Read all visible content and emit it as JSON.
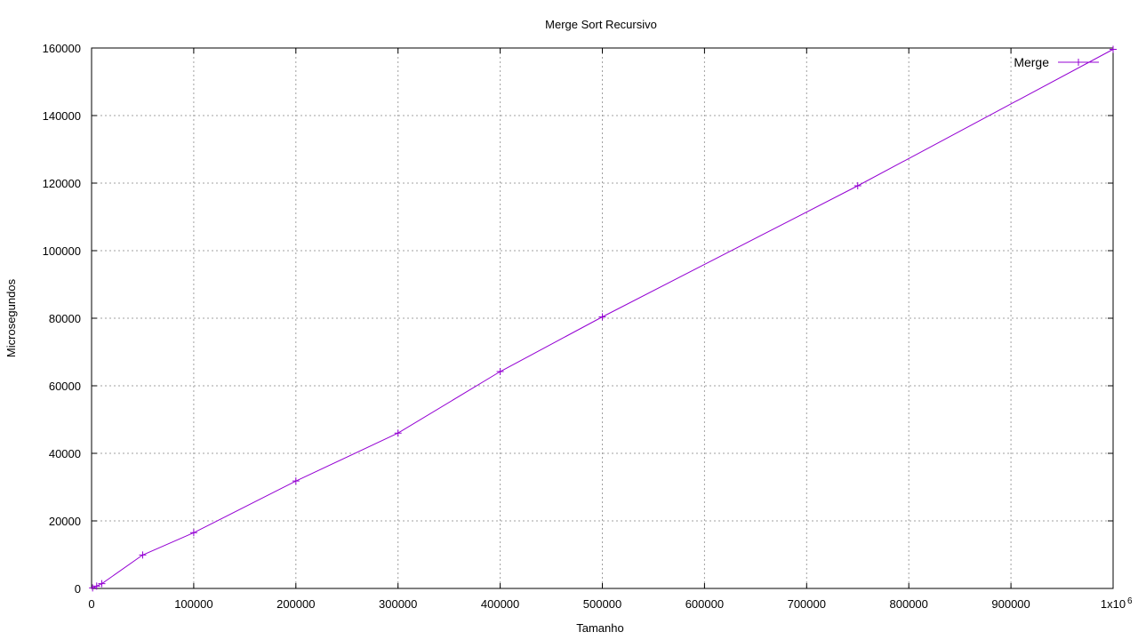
{
  "chart_data": {
    "type": "line",
    "title": "Merge Sort Recursivo",
    "xlabel": "Tamanho",
    "ylabel": "Microsegundos",
    "xlim": [
      0,
      1000000
    ],
    "ylim": [
      0,
      160000
    ],
    "x_ticks": [
      {
        "value": 0,
        "label": "0"
      },
      {
        "value": 100000,
        "label": "100000"
      },
      {
        "value": 200000,
        "label": "200000"
      },
      {
        "value": 300000,
        "label": "300000"
      },
      {
        "value": 400000,
        "label": "400000"
      },
      {
        "value": 500000,
        "label": "500000"
      },
      {
        "value": 600000,
        "label": "600000"
      },
      {
        "value": 700000,
        "label": "700000"
      },
      {
        "value": 800000,
        "label": "800000"
      },
      {
        "value": 900000,
        "label": "900000"
      },
      {
        "value": 1000000,
        "label": "1x10",
        "superscript": "6"
      }
    ],
    "y_ticks": [
      {
        "value": 0,
        "label": "0"
      },
      {
        "value": 20000,
        "label": "20000"
      },
      {
        "value": 40000,
        "label": "40000"
      },
      {
        "value": 60000,
        "label": "60000"
      },
      {
        "value": 80000,
        "label": "80000"
      },
      {
        "value": 100000,
        "label": "100000"
      },
      {
        "value": 120000,
        "label": "120000"
      },
      {
        "value": 140000,
        "label": "140000"
      },
      {
        "value": 160000,
        "label": "160000"
      }
    ],
    "grid": true,
    "legend_position": "top-right",
    "series": [
      {
        "name": "Merge",
        "color": "#9400d3",
        "marker": "plus",
        "points": [
          {
            "x": 1000,
            "y": 150
          },
          {
            "x": 5000,
            "y": 700
          },
          {
            "x": 10000,
            "y": 1400
          },
          {
            "x": 50000,
            "y": 9900
          },
          {
            "x": 100000,
            "y": 16500
          },
          {
            "x": 200000,
            "y": 31800
          },
          {
            "x": 300000,
            "y": 46000
          },
          {
            "x": 400000,
            "y": 64200
          },
          {
            "x": 500000,
            "y": 80400
          },
          {
            "x": 750000,
            "y": 119200
          },
          {
            "x": 1000000,
            "y": 159600
          }
        ]
      }
    ]
  }
}
